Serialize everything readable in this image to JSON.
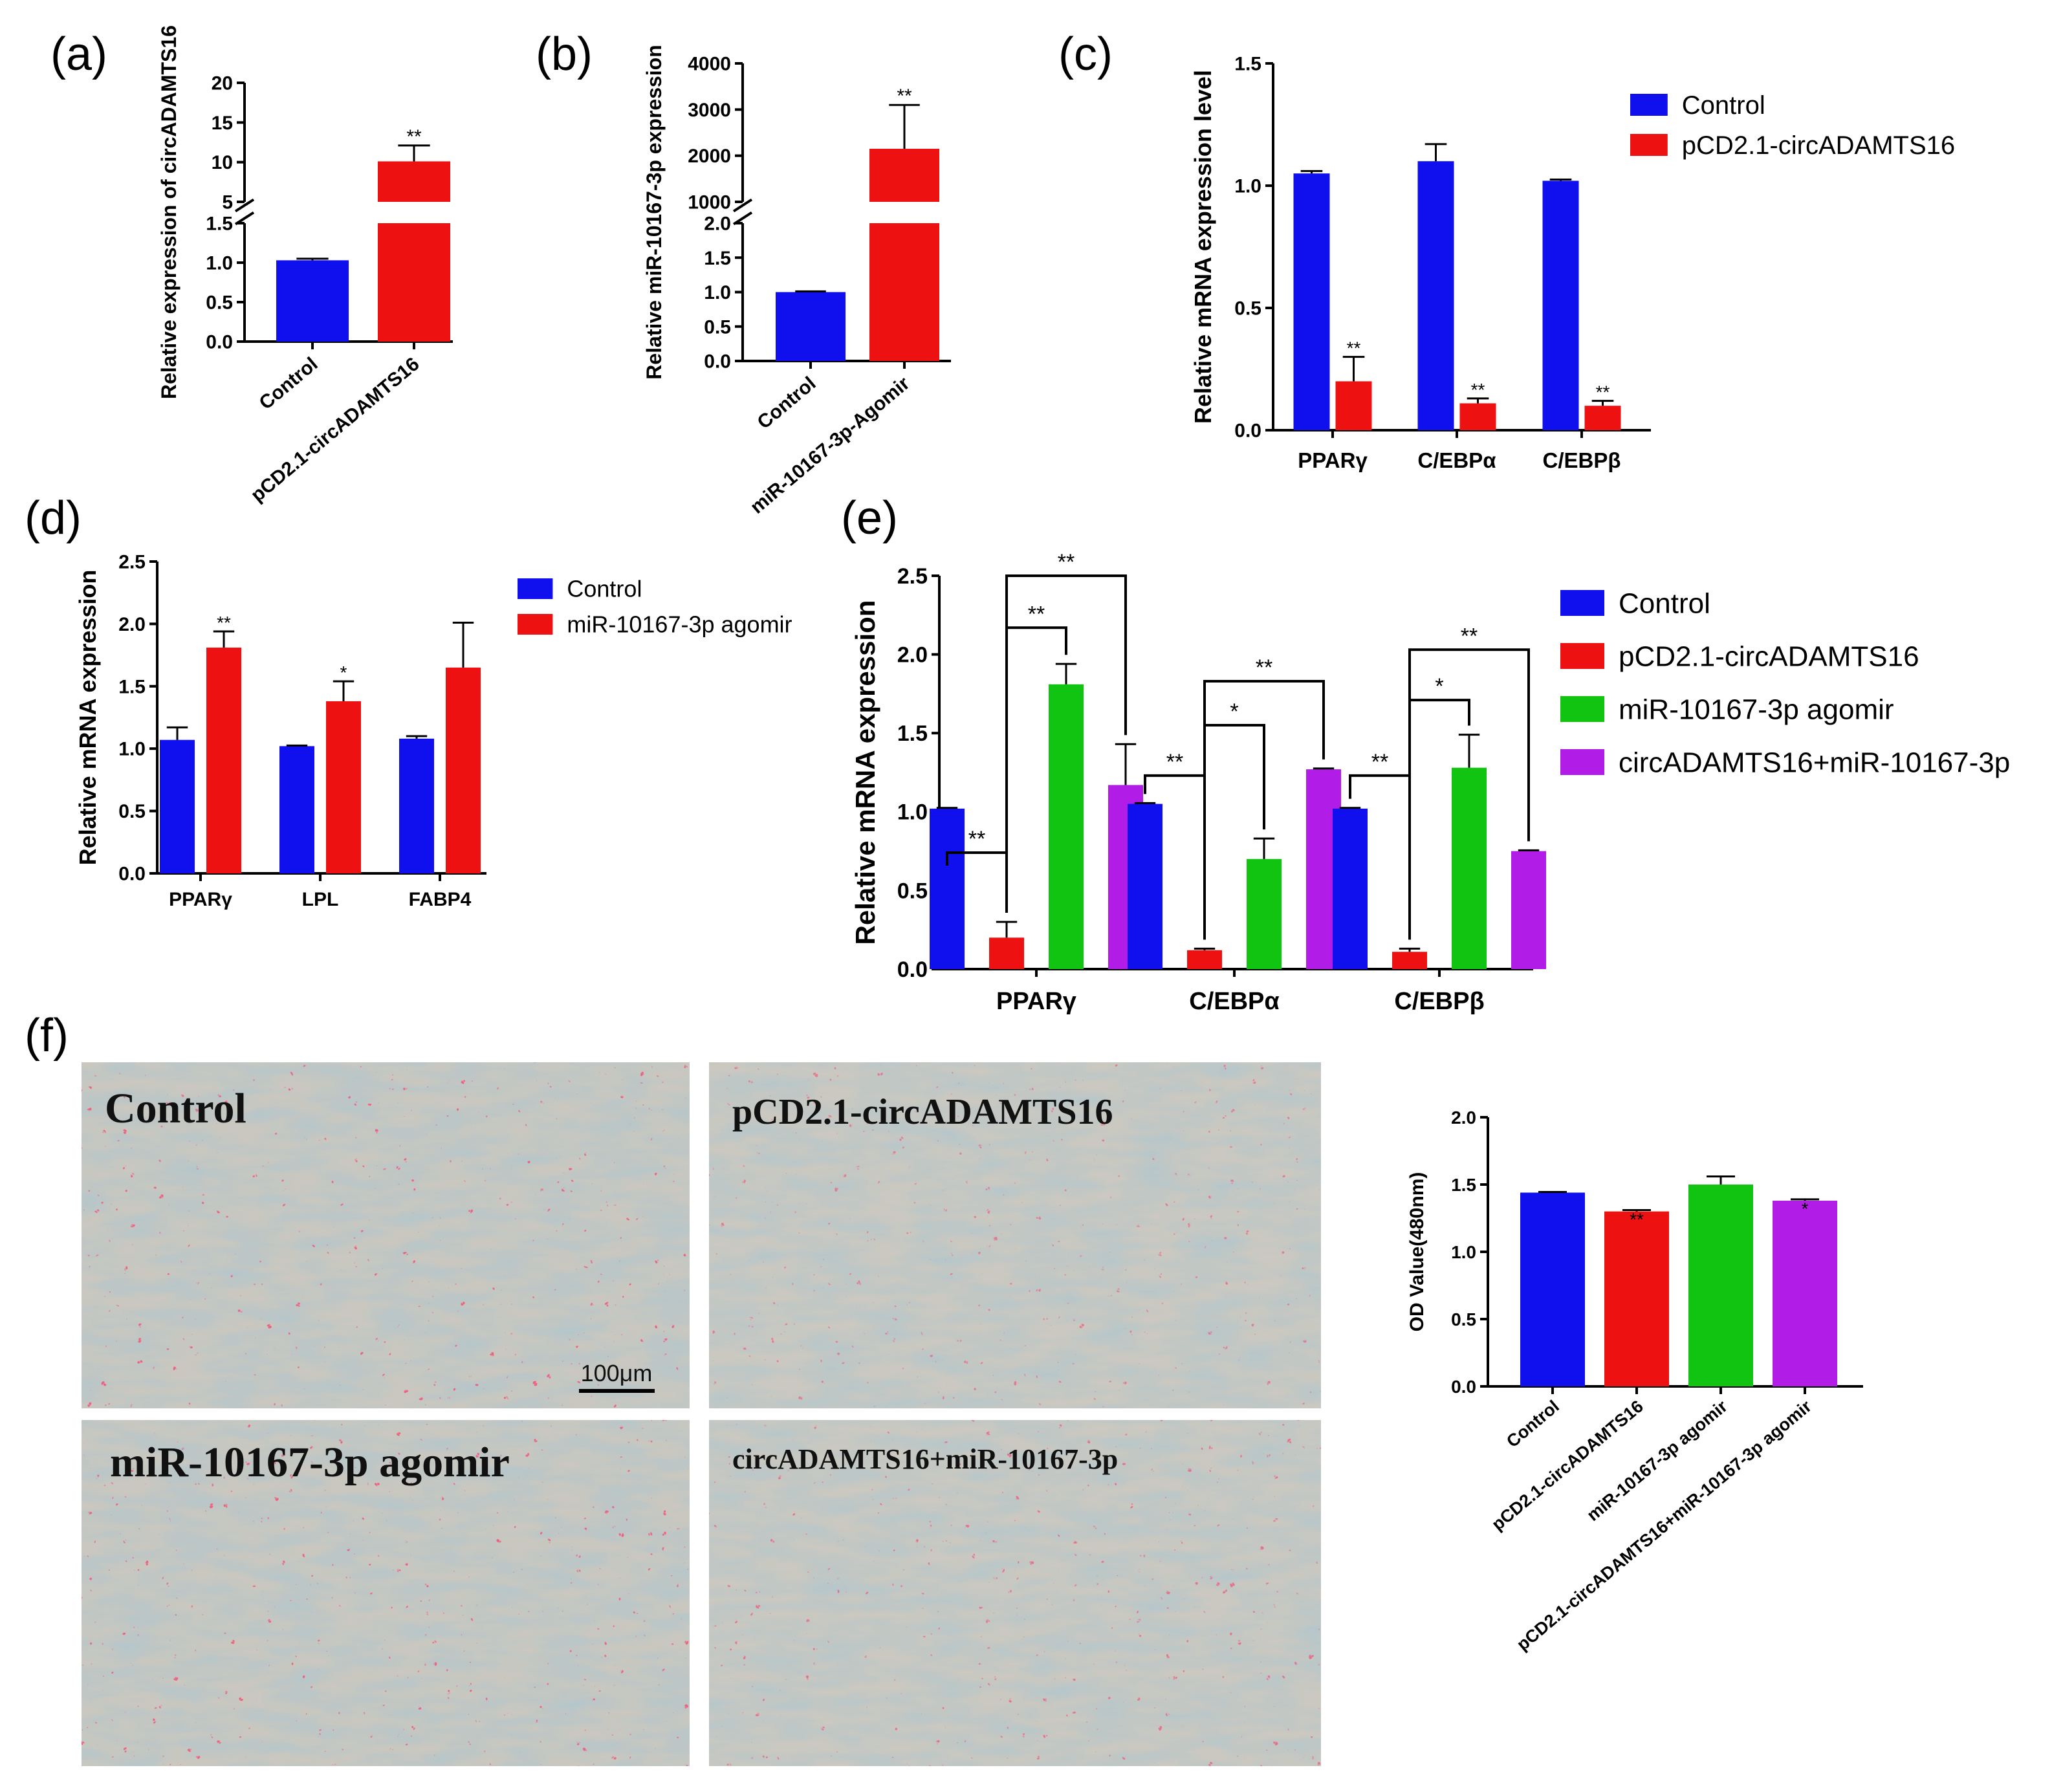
{
  "figure": {
    "colors": {
      "blue": "#1010ee",
      "red": "#ee1111",
      "green": "#11c411",
      "purple": "#b11de6"
    },
    "panels": {
      "a": "(a)",
      "b": "(b)",
      "c": "(c)",
      "d": "(d)",
      "e": "(e)",
      "f": "(f)"
    }
  },
  "chart_data": [
    {
      "id": "a",
      "type": "bar",
      "axis_break": true,
      "ylabel": "Relative expression of circADAMTS16",
      "categories": [
        "Control",
        "pCD2.1-circADAMTS16"
      ],
      "values": [
        1.03,
        10.1
      ],
      "errors": [
        0.02,
        2.0
      ],
      "colors": [
        "#1010ee",
        "#ee1111"
      ],
      "sig": [
        "",
        "**"
      ],
      "lower_ticks": [
        "0.0",
        "0.5",
        "1.0",
        "1.5"
      ],
      "upper_ticks": [
        "5",
        "10",
        "15",
        "20"
      ],
      "lower_range": [
        0,
        1.5
      ],
      "upper_range": [
        5,
        20
      ]
    },
    {
      "id": "b",
      "type": "bar",
      "axis_break": true,
      "ylabel": "Relative miR-10167-3p expression",
      "categories": [
        "Control",
        "miR-10167-3p-Agomir"
      ],
      "values": [
        1.0,
        2150
      ],
      "errors": [
        0.01,
        950
      ],
      "colors": [
        "#1010ee",
        "#ee1111"
      ],
      "sig": [
        "",
        "**"
      ],
      "lower_ticks": [
        "0.0",
        "0.5",
        "1.0",
        "1.5",
        "2.0"
      ],
      "upper_ticks": [
        "1000",
        "2000",
        "3000",
        "4000"
      ],
      "lower_range": [
        0,
        2.0
      ],
      "upper_range": [
        1000,
        4000
      ]
    },
    {
      "id": "c",
      "type": "bar",
      "ylabel": "Relative mRNA expression level",
      "categories": [
        "PPARγ",
        "C/EBPα",
        "C/EBPβ"
      ],
      "ticks": [
        "0.0",
        "0.5",
        "1.0",
        "1.5"
      ],
      "ylim": [
        0,
        1.5
      ],
      "legend": [
        "Control",
        "pCD2.1-circADAMTS16"
      ],
      "series": [
        {
          "name": "Control",
          "color": "#1010ee",
          "values": [
            1.05,
            1.1,
            1.02
          ],
          "errors": [
            0.01,
            0.07,
            0.005
          ],
          "sig": [
            "",
            "",
            ""
          ]
        },
        {
          "name": "pCD2.1-circADAMTS16",
          "color": "#ee1111",
          "values": [
            0.2,
            0.11,
            0.1
          ],
          "errors": [
            0.1,
            0.02,
            0.02
          ],
          "sig": [
            "**",
            "**",
            "**"
          ]
        }
      ]
    },
    {
      "id": "d",
      "type": "bar",
      "ylabel": "Relative mRNA expression",
      "categories": [
        "PPARγ",
        "LPL",
        "FABP4"
      ],
      "ticks": [
        "0.0",
        "0.5",
        "1.0",
        "1.5",
        "2.0",
        "2.5"
      ],
      "ylim": [
        0,
        2.5
      ],
      "legend": [
        "Control",
        "miR-10167-3p agomir"
      ],
      "series": [
        {
          "name": "Control",
          "color": "#1010ee",
          "values": [
            1.07,
            1.02,
            1.08
          ],
          "errors": [
            0.1,
            0.005,
            0.02
          ],
          "sig": [
            "",
            "",
            ""
          ]
        },
        {
          "name": "miR-10167-3p agomir",
          "color": "#ee1111",
          "values": [
            1.81,
            1.38,
            1.65
          ],
          "errors": [
            0.13,
            0.16,
            0.36
          ],
          "sig": [
            "**",
            "*",
            ""
          ]
        }
      ]
    },
    {
      "id": "e",
      "type": "bar",
      "ylabel": "Relative mRNA expression",
      "categories": [
        "PPARγ",
        "C/EBPα",
        "C/EBPβ"
      ],
      "ticks": [
        "0.0",
        "0.5",
        "1.0",
        "1.5",
        "2.0",
        "2.5"
      ],
      "ylim": [
        0,
        2.5
      ],
      "legend": [
        "Control",
        "pCD2.1-circADAMTS16",
        "miR-10167-3p agomir",
        "circADAMTS16+miR-10167-3p"
      ],
      "series": [
        {
          "name": "Control",
          "color": "#1010ee",
          "values": [
            1.02,
            1.05,
            1.02
          ],
          "errors": [
            0.005,
            0.005,
            0.005
          ]
        },
        {
          "name": "pCD2.1-circADAMTS16",
          "color": "#ee1111",
          "values": [
            0.2,
            0.12,
            0.11
          ],
          "errors": [
            0.1,
            0.01,
            0.02
          ]
        },
        {
          "name": "miR-10167-3p agomir",
          "color": "#11c411",
          "values": [
            1.81,
            0.7,
            1.28
          ],
          "errors": [
            0.13,
            0.13,
            0.21
          ]
        },
        {
          "name": "circADAMTS16+miR-10167-3p",
          "color": "#b11de6",
          "values": [
            1.17,
            1.27,
            0.75
          ],
          "errors": [
            0.26,
            0.005,
            0.005
          ]
        }
      ],
      "brackets": [
        {
          "group": 0,
          "from": 0,
          "to": 1,
          "label": "**",
          "level": 0.74
        },
        {
          "group": 0,
          "from": 1,
          "to": 2,
          "label": "**",
          "level": 2.17
        },
        {
          "group": 0,
          "from": 1,
          "to": 3,
          "label": "**",
          "level": 2.5
        },
        {
          "group": 1,
          "from": 0,
          "to": 1,
          "label": "**",
          "level": 1.23
        },
        {
          "group": 1,
          "from": 1,
          "to": 2,
          "label": "*",
          "level": 1.55
        },
        {
          "group": 1,
          "from": 1,
          "to": 3,
          "label": "**",
          "level": 1.83
        },
        {
          "group": 2,
          "from": 0,
          "to": 1,
          "label": "**",
          "level": 1.23
        },
        {
          "group": 2,
          "from": 1,
          "to": 2,
          "label": "*",
          "level": 1.71
        },
        {
          "group": 2,
          "from": 1,
          "to": 3,
          "label": "**",
          "level": 2.03
        }
      ]
    },
    {
      "id": "f",
      "type": "bar",
      "ylabel": "OD Value(480nm)",
      "categories": [
        "Control",
        "pCD2.1-circADAMTS16",
        "miR-10167-3p agomir",
        "pCD2.1-circADAMTS16+miR-10167-3p agomir"
      ],
      "values": [
        1.44,
        1.3,
        1.5,
        1.38
      ],
      "errors": [
        0.005,
        0.01,
        0.06,
        0.01
      ],
      "colors": [
        "#1010ee",
        "#ee1111",
        "#11c411",
        "#b11de6"
      ],
      "sig": [
        "",
        "**",
        "",
        "*"
      ],
      "ticks": [
        "0.0",
        "0.5",
        "1.0",
        "1.5",
        "2.0"
      ],
      "ylim": [
        0,
        2.0
      ]
    }
  ],
  "micrographs": {
    "labels": [
      "Control",
      "pCD2.1-circADAMTS16",
      "miR-10167-3p agomir",
      "circADAMTS16+miR-10167-3p"
    ],
    "scale_bar": "100μm"
  }
}
